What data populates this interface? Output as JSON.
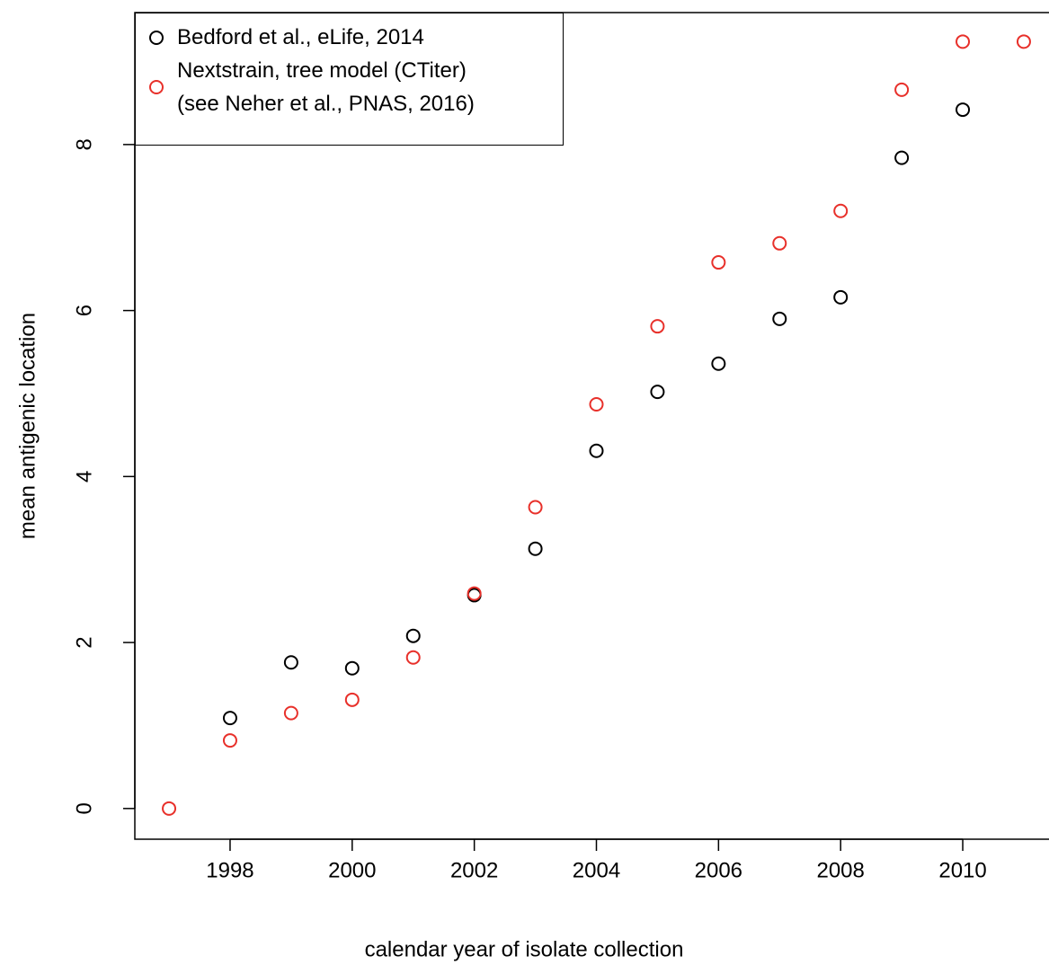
{
  "chart_data": {
    "type": "scatter",
    "x_label": "calendar year of isolate collection",
    "y_label": "mean antigenic location",
    "xlim": [
      1996.44,
      2011.56
    ],
    "ylim": [
      -0.37,
      9.59
    ],
    "xticks": [
      1998,
      2000,
      2002,
      2004,
      2006,
      2008,
      2010
    ],
    "yticks": [
      0,
      2,
      4,
      6,
      8
    ],
    "legend": "topleft",
    "series": [
      {
        "name": "Bedford et al., eLife, 2014",
        "color": "#000000",
        "x": [
          1998,
          1999,
          2000,
          2001,
          2002,
          2003,
          2004,
          2005,
          2006,
          2007,
          2008,
          2009,
          2010
        ],
        "values": [
          1.09,
          1.76,
          1.69,
          2.08,
          2.57,
          3.13,
          4.31,
          5.02,
          5.36,
          5.9,
          6.16,
          7.84,
          8.42
        ]
      },
      {
        "name": "Nextstrain, tree model (CTiter)\n(see Neher et al., PNAS, 2016)",
        "color": "#e8302a",
        "x": [
          1997,
          1998,
          1999,
          2000,
          2001,
          2002,
          2003,
          2004,
          2005,
          2006,
          2007,
          2008,
          2009,
          2010,
          2011
        ],
        "values": [
          0,
          0.82,
          1.15,
          1.31,
          1.82,
          2.59,
          3.63,
          4.87,
          5.81,
          6.58,
          6.81,
          7.2,
          8.66,
          9.24,
          9.24
        ]
      }
    ]
  }
}
